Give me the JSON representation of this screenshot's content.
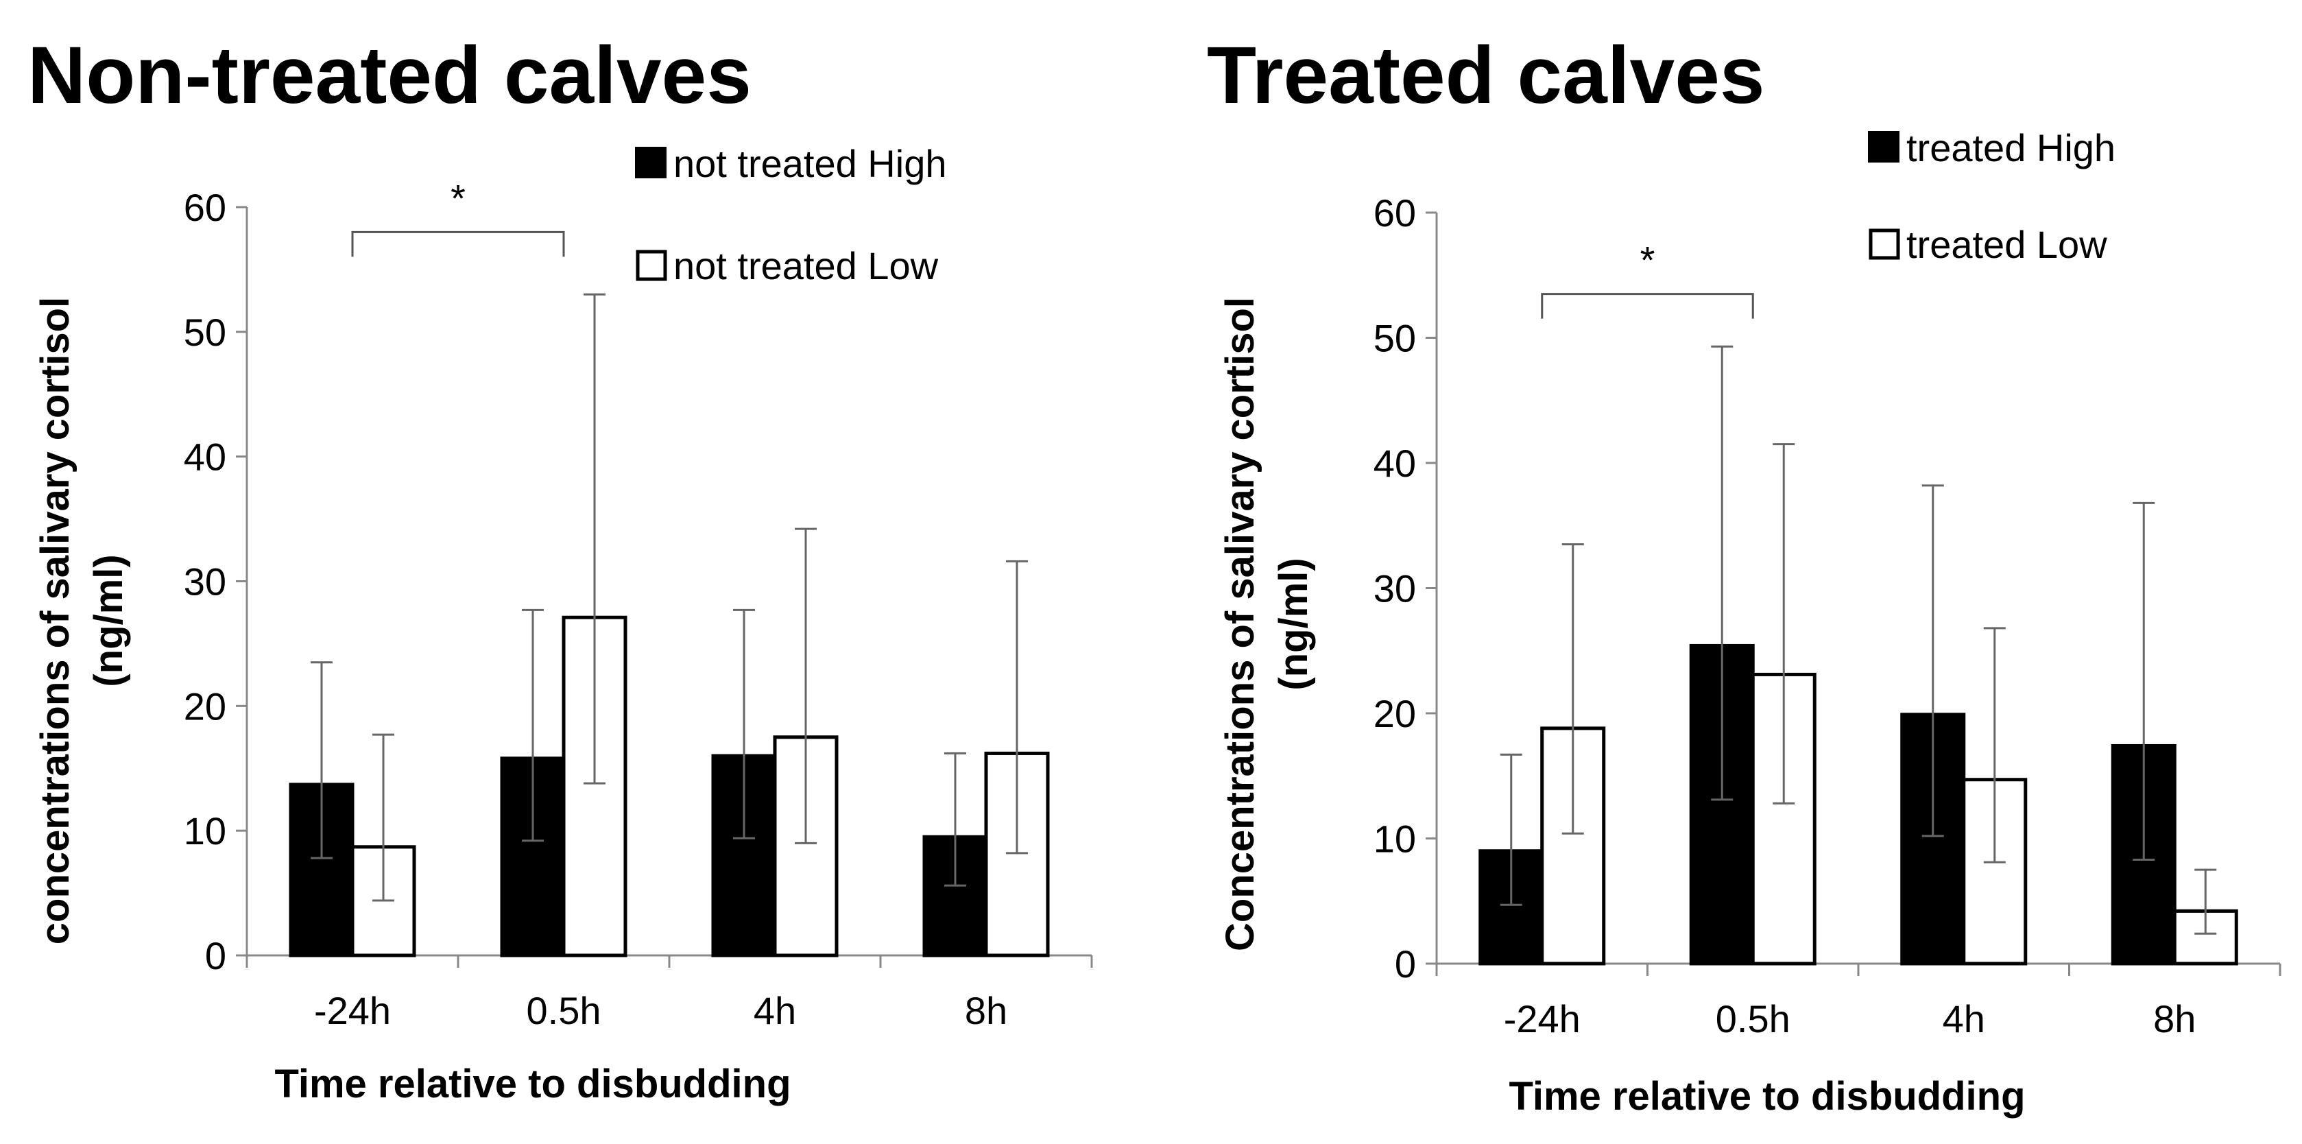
{
  "chart_data": [
    {
      "type": "bar",
      "title": "Non-treated calves",
      "xlabel": "Time relative to disbudding",
      "ylabel": [
        "concentrations of salivary cortisol",
        "(ng/ml)"
      ],
      "ylim": [
        0,
        60
      ],
      "yticks": [
        0,
        10,
        20,
        30,
        40,
        50,
        60
      ],
      "categories": [
        "-24h",
        "0.5h",
        "4h",
        "8h"
      ],
      "series": [
        {
          "name": "not treated High",
          "fill": "#000000",
          "values": [
            13.7,
            15.8,
            16.0,
            9.5
          ],
          "err_low": [
            7.8,
            9.2,
            9.4,
            5.6
          ],
          "err_high": [
            23.5,
            27.7,
            27.7,
            16.2
          ]
        },
        {
          "name": "not treated Low",
          "fill": "#ffffff",
          "values": [
            8.7,
            27.1,
            17.5,
            16.2
          ],
          "err_low": [
            4.4,
            13.8,
            9.0,
            8.2
          ],
          "err_high": [
            17.7,
            53.0,
            34.2,
            31.6
          ]
        }
      ],
      "significance": {
        "label": "*",
        "from_category": 0,
        "to_category": 1,
        "y": 58
      }
    },
    {
      "type": "bar",
      "title": "Treated calves",
      "xlabel": "Time relative to disbudding",
      "ylabel": [
        "Concentrations of salivary cortisol",
        "(ng/ml)"
      ],
      "ylim": [
        0,
        60
      ],
      "yticks": [
        0,
        10,
        20,
        30,
        40,
        50,
        60
      ],
      "categories": [
        "-24h",
        "0.5h",
        "4h",
        "8h"
      ],
      "series": [
        {
          "name": "treated High",
          "fill": "#000000",
          "values": [
            9.0,
            25.4,
            19.9,
            17.4
          ],
          "err_low": [
            4.7,
            13.1,
            10.2,
            8.3
          ],
          "err_high": [
            16.7,
            49.3,
            38.2,
            36.8
          ]
        },
        {
          "name": "treated Low",
          "fill": "#ffffff",
          "values": [
            18.8,
            23.1,
            14.7,
            4.2
          ],
          "err_low": [
            10.4,
            12.8,
            8.1,
            2.4
          ],
          "err_high": [
            33.5,
            41.5,
            26.8,
            7.5
          ]
        }
      ],
      "significance": {
        "label": "*",
        "from_category": 0,
        "to_category": 1,
        "y": 53.5
      }
    }
  ]
}
